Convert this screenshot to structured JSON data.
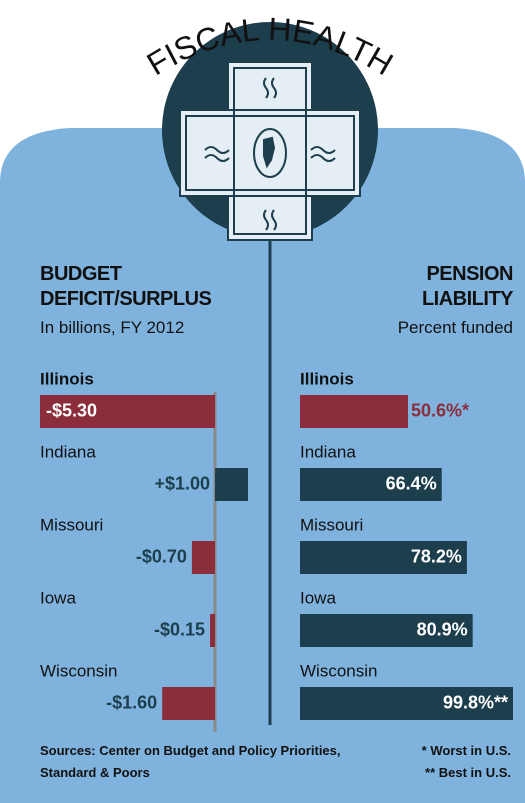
{
  "header": {
    "title": "FISCAL HEALTH"
  },
  "chart_data": [
    {
      "type": "diverging-bar",
      "title": "BUDGET DEFICIT/SURPLUS",
      "subtitle": "In billions, FY 2012",
      "categories": [
        "Illinois",
        "Indiana",
        "Missouri",
        "Iowa",
        "Wisconsin"
      ],
      "values": [
        -5.3,
        1.0,
        -0.7,
        -0.15,
        -1.6
      ],
      "value_labels": [
        "-$5.30",
        "+$1.00",
        "-$0.70",
        "-$0.15",
        "-$1.60"
      ],
      "colors": [
        "#8c2d3b",
        "#1d3e4d",
        "#8c2d3b",
        "#8c2d3b",
        "#8c2d3b"
      ]
    },
    {
      "type": "bar",
      "title": "PENSION LIABILITY",
      "subtitle": "Percent funded",
      "categories": [
        "Illinois",
        "Indiana",
        "Missouri",
        "Iowa",
        "Wisconsin"
      ],
      "values": [
        50.6,
        66.4,
        78.2,
        80.9,
        99.8
      ],
      "value_labels": [
        "50.6%*",
        "66.4%",
        "78.2%",
        "80.9%",
        "99.8%**"
      ],
      "colors": [
        "#8c2d3b",
        "#1d3e4d",
        "#1d3e4d",
        "#1d3e4d",
        "#1d3e4d"
      ]
    }
  ],
  "notes": {
    "sources": "Sources: Center on Budget and Policy Priorities, Standard & Poors",
    "footnotes": [
      "* Worst in U.S.",
      "** Best in U.S."
    ]
  }
}
